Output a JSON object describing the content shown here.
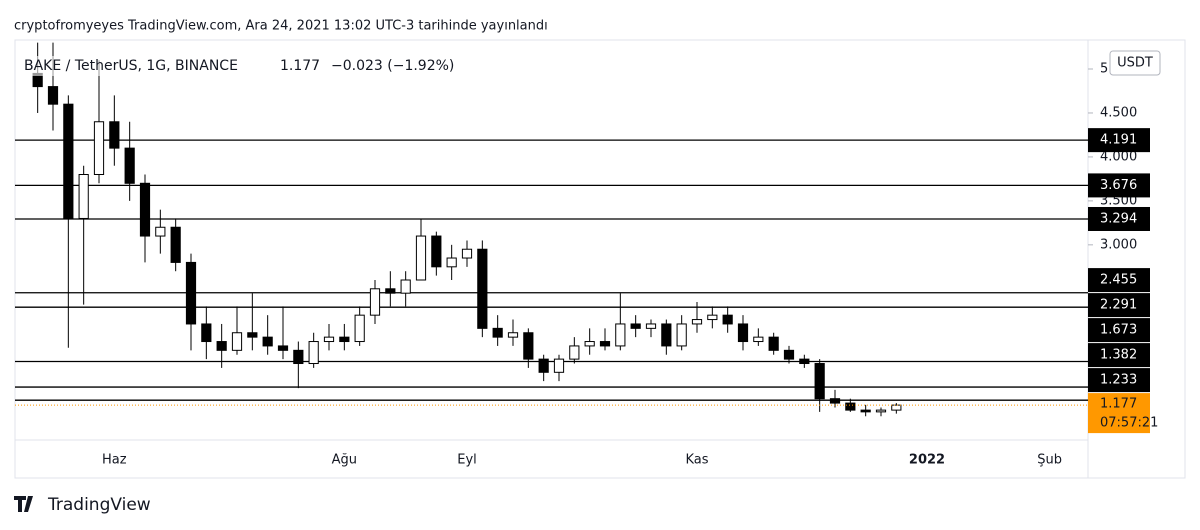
{
  "header": {
    "published": "cryptofromyeyes TradingView.com, Ara 24, 2021 13:02 UTC-3 tarihinde yayınlandı"
  },
  "chart_data": {
    "type": "candlestick",
    "symbol": "BAKE / TetherUS, 1G, BINANCE",
    "price": 1.177,
    "change": "−0.023 (−1.92%)",
    "currency": "USDT",
    "countdown": "07:57:21",
    "categories": [
      null,
      null,
      null,
      null,
      null,
      "Haz",
      null,
      null,
      null,
      null,
      null,
      null,
      null,
      null,
      null,
      null,
      null,
      null,
      null,
      null,
      "Ağu",
      null,
      null,
      null,
      null,
      null,
      null,
      null,
      "Eyl",
      null,
      null,
      null,
      null,
      null,
      null,
      null,
      null,
      null,
      null,
      null,
      null,
      null,
      null,
      "Kas",
      null,
      null,
      null,
      null,
      null,
      null,
      null,
      null,
      null,
      null,
      null,
      null,
      null,
      null,
      "2022",
      null,
      null,
      null,
      null,
      null,
      null,
      null,
      "Şub",
      null,
      null
    ],
    "open": [
      4.95,
      4.8,
      4.6,
      3.3,
      3.8,
      4.4,
      4.1,
      3.7,
      3.1,
      3.2,
      2.8,
      2.1,
      1.9,
      1.8,
      2.0,
      1.95,
      1.85,
      1.8,
      1.65,
      1.9,
      1.95,
      1.9,
      2.2,
      2.5,
      2.45,
      2.6,
      3.1,
      2.75,
      2.85,
      2.95,
      2.05,
      1.95,
      2.0,
      1.7,
      1.55,
      1.7,
      1.85,
      1.9,
      1.85,
      2.1,
      2.05,
      2.1,
      1.85,
      2.1,
      2.15,
      2.2,
      2.1,
      1.9,
      1.95,
      1.8,
      1.7,
      1.65,
      1.25,
      1.2,
      1.12,
      1.1,
      1.12,
      null,
      null,
      null,
      null,
      null,
      null,
      null,
      null,
      null,
      null,
      null,
      null
    ],
    "high": [
      5.3,
      5.3,
      4.7,
      3.9,
      5.1,
      4.7,
      4.4,
      3.8,
      3.4,
      3.3,
      2.9,
      2.3,
      2.1,
      2.3,
      2.45,
      2.2,
      2.3,
      1.9,
      2.0,
      2.1,
      2.1,
      2.3,
      2.6,
      2.7,
      2.7,
      3.3,
      3.15,
      3.0,
      3.05,
      3.05,
      2.2,
      2.15,
      2.05,
      1.75,
      1.75,
      1.95,
      2.05,
      2.05,
      2.45,
      2.2,
      2.15,
      2.15,
      2.2,
      2.35,
      2.3,
      2.3,
      2.2,
      2.05,
      2.0,
      1.85,
      1.75,
      1.7,
      1.35,
      1.25,
      1.18,
      1.15,
      1.2,
      null,
      null,
      null,
      null,
      null,
      null,
      null,
      null,
      null,
      null,
      null,
      null
    ],
    "low": [
      4.5,
      4.3,
      1.83,
      2.32,
      3.7,
      3.9,
      3.5,
      2.8,
      2.9,
      2.7,
      1.8,
      1.7,
      1.6,
      1.75,
      1.8,
      1.75,
      1.7,
      1.37,
      1.6,
      1.8,
      1.8,
      1.85,
      2.1,
      2.3,
      2.3,
      2.6,
      2.65,
      2.6,
      2.75,
      1.95,
      1.85,
      1.85,
      1.6,
      1.45,
      1.45,
      1.65,
      1.75,
      1.8,
      1.8,
      1.95,
      1.95,
      1.75,
      1.8,
      2.0,
      2.05,
      2.0,
      1.8,
      1.85,
      1.75,
      1.65,
      1.6,
      1.1,
      1.15,
      1.1,
      1.05,
      1.05,
      1.08,
      null,
      null,
      null,
      null,
      null,
      null,
      null,
      null,
      null,
      null,
      null,
      null
    ],
    "close": [
      4.8,
      4.6,
      3.3,
      3.8,
      4.4,
      4.1,
      3.7,
      3.1,
      3.2,
      2.8,
      2.1,
      1.9,
      1.8,
      2.0,
      1.95,
      1.85,
      1.8,
      1.65,
      1.9,
      1.95,
      1.9,
      2.2,
      2.5,
      2.45,
      2.6,
      3.1,
      2.75,
      2.85,
      2.95,
      2.05,
      1.95,
      2.0,
      1.7,
      1.55,
      1.7,
      1.85,
      1.9,
      1.85,
      2.1,
      2.05,
      2.1,
      1.85,
      2.1,
      2.15,
      2.2,
      2.1,
      1.9,
      1.95,
      1.8,
      1.7,
      1.65,
      1.25,
      1.2,
      1.12,
      1.1,
      1.12,
      1.177,
      null,
      null,
      null,
      null,
      null,
      null,
      null,
      null,
      null,
      null,
      null,
      null
    ],
    "levels": [
      4.191,
      3.676,
      3.294,
      2.455,
      2.291,
      1.673,
      1.382,
      1.233
    ],
    "ylim": [
      0.78,
      5.33
    ],
    "yticks": [
      {
        "value": 3,
        "label": "3.000"
      },
      {
        "value": 3.5,
        "label": "3.500"
      },
      {
        "value": 4,
        "label": "4.000"
      },
      {
        "value": 4.5,
        "label": "4.500"
      },
      5
    ],
    "up_color": "#ffffff",
    "down_color": "#000000",
    "level_color": "#000000",
    "price_color": "#ff9800"
  },
  "footer": {
    "brand": "TradingView"
  }
}
